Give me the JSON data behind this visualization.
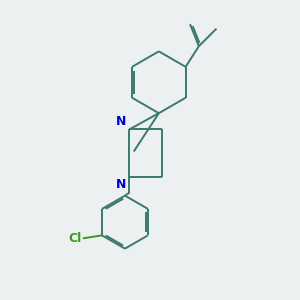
{
  "bg_color": "#edf0f0",
  "bond_color": "#3a7a6a",
  "N_color": "#0000dd",
  "Cl_color": "#3a9a20",
  "bond_width": 1.4,
  "dbo": 0.06,
  "fig_w": 3.0,
  "fig_h": 3.0,
  "dpi": 100,
  "xlim": [
    0,
    10
  ],
  "ylim": [
    0,
    10
  ]
}
